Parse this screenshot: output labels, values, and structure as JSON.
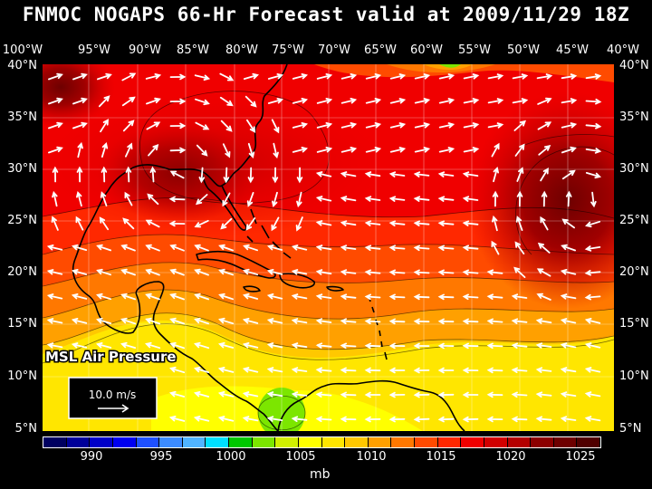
{
  "title": "FNMOC NOGAPS 66-Hr Forecast valid at 2009/11/29 18Z",
  "field_label": "MSL Air Pressure",
  "vector_legend": "10.0 m/s",
  "units": "mb",
  "lon_labels": [
    "100°W",
    "95°W",
    "90°W",
    "85°W",
    "80°W",
    "75°W",
    "70°W",
    "65°W",
    "60°W",
    "55°W",
    "50°W",
    "45°W",
    "40°W"
  ],
  "lat_labels": [
    "40°N",
    "35°N",
    "30°N",
    "25°N",
    "20°N",
    "15°N",
    "10°N",
    "5°N"
  ],
  "colorbar": {
    "tick_labels": [
      "990",
      "995",
      "1000",
      "1005",
      "1010",
      "1015",
      "1020",
      "1025"
    ],
    "colors": [
      "#000060",
      "#00009a",
      "#0000c8",
      "#0000f0",
      "#1e50ff",
      "#3c8cff",
      "#50b4ff",
      "#00e0ff",
      "#00c800",
      "#7ce600",
      "#d2f000",
      "#ffff00",
      "#ffe600",
      "#ffc800",
      "#ffa000",
      "#ff7800",
      "#ff4b00",
      "#ff2800",
      "#f00000",
      "#d20000",
      "#b40000",
      "#8c0000",
      "#6e0000",
      "#500000"
    ]
  },
  "colors": {
    "background": "#000000",
    "text": "#ffffff",
    "coast": "#000000",
    "vectors": "#ffffff"
  }
}
